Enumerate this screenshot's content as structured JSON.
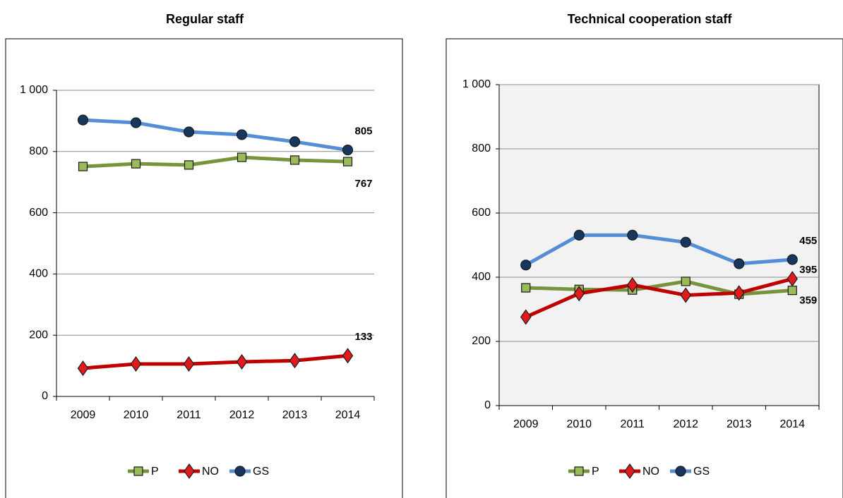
{
  "chart_data": [
    {
      "type": "line",
      "title": "Regular staff",
      "categories": [
        "2009",
        "2010",
        "2011",
        "2012",
        "2013",
        "2014"
      ],
      "series": [
        {
          "name": "P",
          "color": "#77933c",
          "marker": "square",
          "marker_color": "#9bbb59",
          "values": [
            751,
            760,
            756,
            781,
            772,
            767
          ]
        },
        {
          "name": "NO",
          "color": "#c00000",
          "marker": "diamond",
          "marker_color": "#e31a1c",
          "values": [
            92,
            106,
            106,
            113,
            117,
            133
          ]
        },
        {
          "name": "GS",
          "color": "#558ed5",
          "marker": "circle",
          "marker_color": "#17375e",
          "values": [
            903,
            894,
            864,
            855,
            832,
            805
          ]
        }
      ],
      "ylim": [
        0,
        1000
      ],
      "yticks": [
        0,
        200,
        400,
        600,
        800,
        {
          "value": 1000,
          "label": "1 000"
        }
      ],
      "grid": true,
      "legend": "bottom",
      "plot_background": "#ffffff"
    },
    {
      "type": "line",
      "title": "Technical cooperation staff",
      "categories": [
        "2009",
        "2010",
        "2011",
        "2012",
        "2013",
        "2014"
      ],
      "series": [
        {
          "name": "P",
          "color": "#77933c",
          "marker": "square",
          "marker_color": "#9bbb59",
          "values": [
            367,
            362,
            360,
            387,
            347,
            359
          ]
        },
        {
          "name": "NO",
          "color": "#c00000",
          "marker": "diamond",
          "marker_color": "#e31a1c",
          "values": [
            276,
            349,
            376,
            344,
            351,
            395
          ]
        },
        {
          "name": "GS",
          "color": "#558ed5",
          "marker": "circle",
          "marker_color": "#17375e",
          "values": [
            438,
            531,
            531,
            509,
            442,
            455
          ]
        }
      ],
      "ylim": [
        0,
        1000
      ],
      "yticks": [
        0,
        200,
        400,
        600,
        800,
        {
          "value": 1000,
          "label": "1 000"
        }
      ],
      "grid": true,
      "legend": "bottom",
      "plot_background": "#f2f2f2"
    }
  ]
}
